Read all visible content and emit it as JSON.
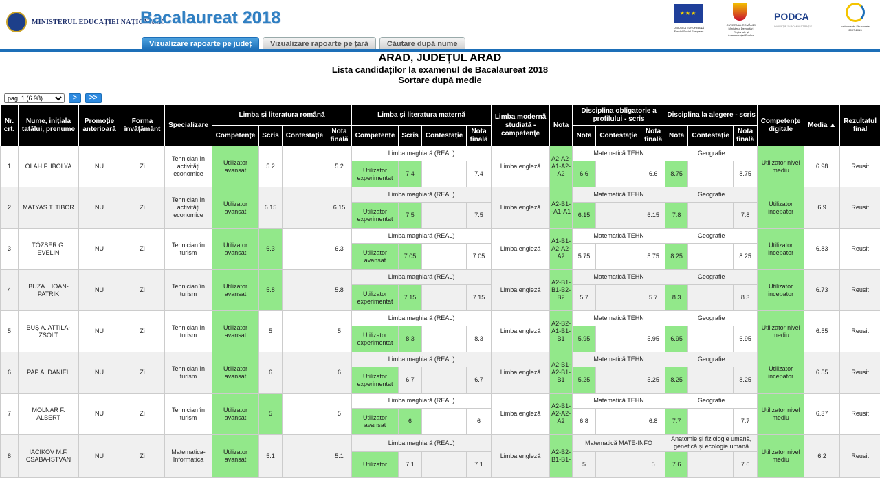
{
  "header": {
    "ministry": "MINISTERUL EDUCAȚIEI NAȚIONALE",
    "app_title": "Bacalaureat 2018",
    "tabs": [
      "Vizualizare rapoarte pe județ",
      "Vizualizare rapoarte pe țară",
      "Căutare după nume"
    ],
    "eu_caption": "UNIUNEA EUROPEANĂ Fondul Social European",
    "gov_caption": "GUVERNUL ROMÂNIEI Ministerul Dezvoltării Regionale și Administrației Publice",
    "podca": "PODCA",
    "podca_caption": "INOVAȚIE ÎN ADMINISTRAȚIE",
    "struct_caption": "Instrumente Structurale 2007-2013"
  },
  "report": {
    "county": "ARAD, JUDEȚUL ARAD",
    "subtitle": "Lista candidaților la examenul de Bacalaureat 2018",
    "sort": "Sortare după medie"
  },
  "pager": {
    "page": "pag. 1 (6.98)",
    "next": ">",
    "last": ">>"
  },
  "columns": {
    "nr": "Nr. crt.",
    "name": "Nume, inițiala tatălui, prenume",
    "promo": "Promoție anterioară",
    "forma": "Forma învățământ",
    "spec": "Specializare",
    "lro": "Limba și literatura română",
    "lmat": "Limba și literatura maternă",
    "lmod": "Limba modernă studiată - competențe",
    "nota": "Nota",
    "dobl": "Disciplina obligatorie a profilului - scris",
    "dalg": "Disciplina la alegere - scris",
    "cdig": "Competențe digitale",
    "media": "Media ▲",
    "rez": "Rezultatul final",
    "competente": "Competențe",
    "scris": "Scris",
    "contestatie": "Contestație",
    "nota_finala": "Nota finală"
  },
  "rows": [
    {
      "nr": "1",
      "name": "OLAH F. IBOLYA",
      "promo": "NU",
      "forma": "Zi",
      "spec": "Tehnician în activități economice",
      "ro_comp": "Utilizator avansat",
      "ro_scris": "5.2",
      "ro_cont": "",
      "ro_final": "5.2",
      "mat_lang": "Limba maghiară (REAL)",
      "mat_comp": "Utilizator experimentat",
      "mat_scris": "7.4",
      "mat_cont": "",
      "mat_final": "7.4",
      "mod": "Limba engleză",
      "mod_nota": "A2-A2-A1-A2-A2",
      "obl_name": "Matematică TEHN",
      "obl_nota": "6.6",
      "obl_cont": "",
      "obl_final": "6.6",
      "alg_name": "Geografie",
      "alg_nota": "8.75",
      "alg_cont": "",
      "alg_final": "8.75",
      "dig": "Utilizator nivel mediu",
      "media": "6.98",
      "rez": "Reusit"
    },
    {
      "nr": "2",
      "name": "MATYAS T. TIBOR",
      "promo": "NU",
      "forma": "Zi",
      "spec": "Tehnician în activități economice",
      "ro_comp": "Utilizator avansat",
      "ro_scris": "6.15",
      "ro_cont": "",
      "ro_final": "6.15",
      "mat_lang": "Limba maghiară (REAL)",
      "mat_comp": "Utilizator experimentat",
      "mat_scris": "7.5",
      "mat_cont": "",
      "mat_final": "7.5",
      "mod": "Limba engleză",
      "mod_nota": "A2-B1--A1-A1",
      "obl_name": "Matematică TEHN",
      "obl_nota": "6.15",
      "obl_cont": "",
      "obl_final": "6.15",
      "alg_name": "Geografie",
      "alg_nota": "7.8",
      "alg_cont": "",
      "alg_final": "7.8",
      "dig": "Utilizator incepator",
      "media": "6.9",
      "rez": "Reusit"
    },
    {
      "nr": "3",
      "name": "TŐZSÉR G. EVELIN",
      "promo": "NU",
      "forma": "Zi",
      "spec": "Tehnician în turism",
      "ro_comp": "Utilizator avansat",
      "ro_scris": "6.3",
      "ro_cont": "",
      "ro_final": "6.3",
      "mat_lang": "Limba maghiară (REAL)",
      "mat_comp": "Utilizator avansat",
      "mat_scris": "7.05",
      "mat_cont": "",
      "mat_final": "7.05",
      "mod": "Limba engleză",
      "mod_nota": "A1-B1-A2-A2-A2",
      "obl_name": "Matematică TEHN",
      "obl_nota": "5.75",
      "obl_cont": "",
      "obl_final": "5.75",
      "alg_name": "Geografie",
      "alg_nota": "8.25",
      "alg_cont": "",
      "alg_final": "8.25",
      "dig": "Utilizator incepator",
      "media": "6.83",
      "rez": "Reusit"
    },
    {
      "nr": "4",
      "name": "BUZA I. IOAN-PATRIK",
      "promo": "NU",
      "forma": "Zi",
      "spec": "Tehnician în turism",
      "ro_comp": "Utilizator avansat",
      "ro_scris": "5.8",
      "ro_cont": "",
      "ro_final": "5.8",
      "mat_lang": "Limba maghiară (REAL)",
      "mat_comp": "Utilizator experimentat",
      "mat_scris": "7.15",
      "mat_cont": "",
      "mat_final": "7.15",
      "mod": "Limba engleză",
      "mod_nota": "A2-B1-B1-B2-B2",
      "obl_name": "Matematică TEHN",
      "obl_nota": "5.7",
      "obl_cont": "",
      "obl_final": "5.7",
      "alg_name": "Geografie",
      "alg_nota": "8.3",
      "alg_cont": "",
      "alg_final": "8.3",
      "dig": "Utilizator incepator",
      "media": "6.73",
      "rez": "Reusit"
    },
    {
      "nr": "5",
      "name": "BUȘ A. ATTILA-ZSOLT",
      "promo": "NU",
      "forma": "Zi",
      "spec": "Tehnician în turism",
      "ro_comp": "Utilizator avansat",
      "ro_scris": "5",
      "ro_cont": "",
      "ro_final": "5",
      "mat_lang": "Limba maghiară (REAL)",
      "mat_comp": "Utilizator experimentat",
      "mat_scris": "8.3",
      "mat_cont": "",
      "mat_final": "8.3",
      "mod": "Limba engleză",
      "mod_nota": "A2-B2-A1-B1-B1",
      "obl_name": "Matematică TEHN",
      "obl_nota": "5.95",
      "obl_cont": "",
      "obl_final": "5.95",
      "alg_name": "Geografie",
      "alg_nota": "6.95",
      "alg_cont": "",
      "alg_final": "6.95",
      "dig": "Utilizator nivel mediu",
      "media": "6.55",
      "rez": "Reusit"
    },
    {
      "nr": "6",
      "name": "PAP A. DANIEL",
      "promo": "NU",
      "forma": "Zi",
      "spec": "Tehnician în turism",
      "ro_comp": "Utilizator avansat",
      "ro_scris": "6",
      "ro_cont": "",
      "ro_final": "6",
      "mat_lang": "Limba maghiară (REAL)",
      "mat_comp": "Utilizator experimentat",
      "mat_scris": "6.7",
      "mat_cont": "",
      "mat_final": "6.7",
      "mod": "Limba engleză",
      "mod_nota": "A2-B1-A2-B1-B1",
      "obl_name": "Matematică TEHN",
      "obl_nota": "5.25",
      "obl_cont": "",
      "obl_final": "5.25",
      "alg_name": "Geografie",
      "alg_nota": "8.25",
      "alg_cont": "",
      "alg_final": "8.25",
      "dig": "Utilizator incepator",
      "media": "6.55",
      "rez": "Reusit"
    },
    {
      "nr": "7",
      "name": "MOLNAR F. ALBERT",
      "promo": "NU",
      "forma": "Zi",
      "spec": "Tehnician în turism",
      "ro_comp": "Utilizator avansat",
      "ro_scris": "5",
      "ro_cont": "",
      "ro_final": "5",
      "mat_lang": "Limba maghiară (REAL)",
      "mat_comp": "Utilizator avansat",
      "mat_scris": "6",
      "mat_cont": "",
      "mat_final": "6",
      "mod": "Limba engleză",
      "mod_nota": "A2-B1-A2-A2-A2",
      "obl_name": "Matematică TEHN",
      "obl_nota": "6.8",
      "obl_cont": "",
      "obl_final": "6.8",
      "alg_name": "Geografie",
      "alg_nota": "7.7",
      "alg_cont": "",
      "alg_final": "7.7",
      "dig": "Utilizator nivel mediu",
      "media": "6.37",
      "rez": "Reusit"
    },
    {
      "nr": "8",
      "name": "IACIKOV M.F. CSABA-ISTVAN",
      "promo": "NU",
      "forma": "Zi",
      "spec": "Matematica-Informatica",
      "ro_comp": "Utilizator avansat",
      "ro_scris": "5.1",
      "ro_cont": "",
      "ro_final": "5.1",
      "mat_lang": "Limba maghiară (REAL)",
      "mat_comp": "Utilizator",
      "mat_scris": "7.1",
      "mat_cont": "",
      "mat_final": "7.1",
      "mod": "Limba engleză",
      "mod_nota": "A2-B2-B1-B1-",
      "obl_name": "Matematică MATE-INFO",
      "obl_nota": "5",
      "obl_cont": "",
      "obl_final": "5",
      "alg_name": "Anatomie și fiziologie umană, genetică și ecologie umană",
      "alg_nota": "7.6",
      "alg_cont": "",
      "alg_final": "7.6",
      "dig": "Utilizator nivel mediu",
      "media": "6.2",
      "rez": "Reusit"
    }
  ],
  "green_cells": {
    "1": [
      "ro_comp",
      "mat_comp",
      "mat_scris",
      "mod_nota",
      "obl_nota",
      "alg_nota",
      "dig"
    ],
    "2": [
      "ro_comp",
      "mat_comp",
      "mat_scris",
      "mod_nota",
      "obl_nota",
      "alg_nota",
      "dig"
    ],
    "3": [
      "ro_comp",
      "ro_scris",
      "mat_comp",
      "mat_scris",
      "mod_nota",
      "alg_nota",
      "dig"
    ],
    "4": [
      "ro_comp",
      "ro_scris",
      "mat_comp",
      "mat_scris",
      "mod_nota",
      "alg_nota",
      "dig"
    ],
    "5": [
      "ro_comp",
      "mat_comp",
      "mat_scris",
      "mod_nota",
      "obl_nota",
      "alg_nota",
      "dig"
    ],
    "6": [
      "ro_comp",
      "mat_comp",
      "mod_nota",
      "obl_nota",
      "alg_nota",
      "dig"
    ],
    "7": [
      "ro_comp",
      "ro_scris",
      "mat_comp",
      "mat_scris",
      "mod_nota",
      "alg_nota",
      "dig"
    ],
    "8": [
      "ro_comp",
      "mat_comp",
      "mod_nota",
      "alg_nota",
      "dig"
    ]
  },
  "colors": {
    "accent": "#1d6fb8",
    "highlight": "#92e88a",
    "header_bg": "#000000"
  }
}
